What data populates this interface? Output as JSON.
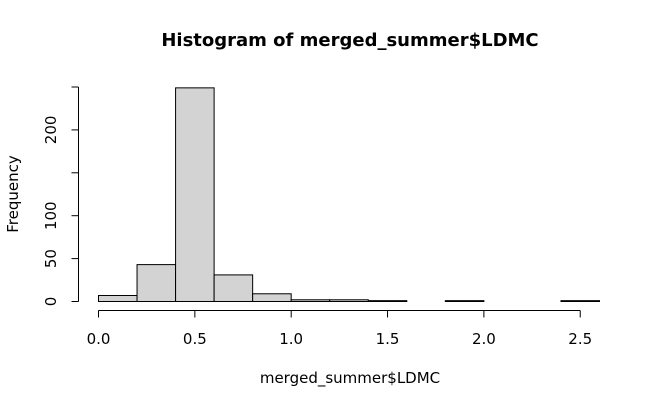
{
  "chart_data": {
    "type": "bar",
    "title": "Histogram of merged_summer$LDMC",
    "xlabel": "merged_summer$LDMC",
    "ylabel": "Frequency",
    "bins": [
      {
        "from": 0.0,
        "to": 0.2,
        "count": 7
      },
      {
        "from": 0.2,
        "to": 0.4,
        "count": 43
      },
      {
        "from": 0.4,
        "to": 0.6,
        "count": 249
      },
      {
        "from": 0.6,
        "to": 0.8,
        "count": 31
      },
      {
        "from": 0.8,
        "to": 1.0,
        "count": 9
      },
      {
        "from": 1.0,
        "to": 1.2,
        "count": 2
      },
      {
        "from": 1.2,
        "to": 1.4,
        "count": 2
      },
      {
        "from": 1.4,
        "to": 1.6,
        "count": 1
      },
      {
        "from": 1.6,
        "to": 1.8,
        "count": 0
      },
      {
        "from": 1.8,
        "to": 2.0,
        "count": 1
      },
      {
        "from": 2.0,
        "to": 2.2,
        "count": 0
      },
      {
        "from": 2.2,
        "to": 2.4,
        "count": 0
      },
      {
        "from": 2.4,
        "to": 2.6,
        "count": 1
      }
    ],
    "xlim": [
      0.0,
      2.6
    ],
    "ylim": [
      0,
      250
    ],
    "x_ticks": [
      0.0,
      0.5,
      1.0,
      1.5,
      2.0,
      2.5
    ],
    "x_tick_labels": [
      "0.0",
      "0.5",
      "1.0",
      "1.5",
      "2.0",
      "2.5"
    ],
    "y_ticks": [
      0,
      50,
      100,
      200
    ],
    "y_tick_labels": [
      "0",
      "50",
      "100",
      "200"
    ],
    "y_axis_extent": [
      0,
      250
    ],
    "bar_fill": "#d3d3d3",
    "bar_stroke": "#000000",
    "grid": false
  }
}
